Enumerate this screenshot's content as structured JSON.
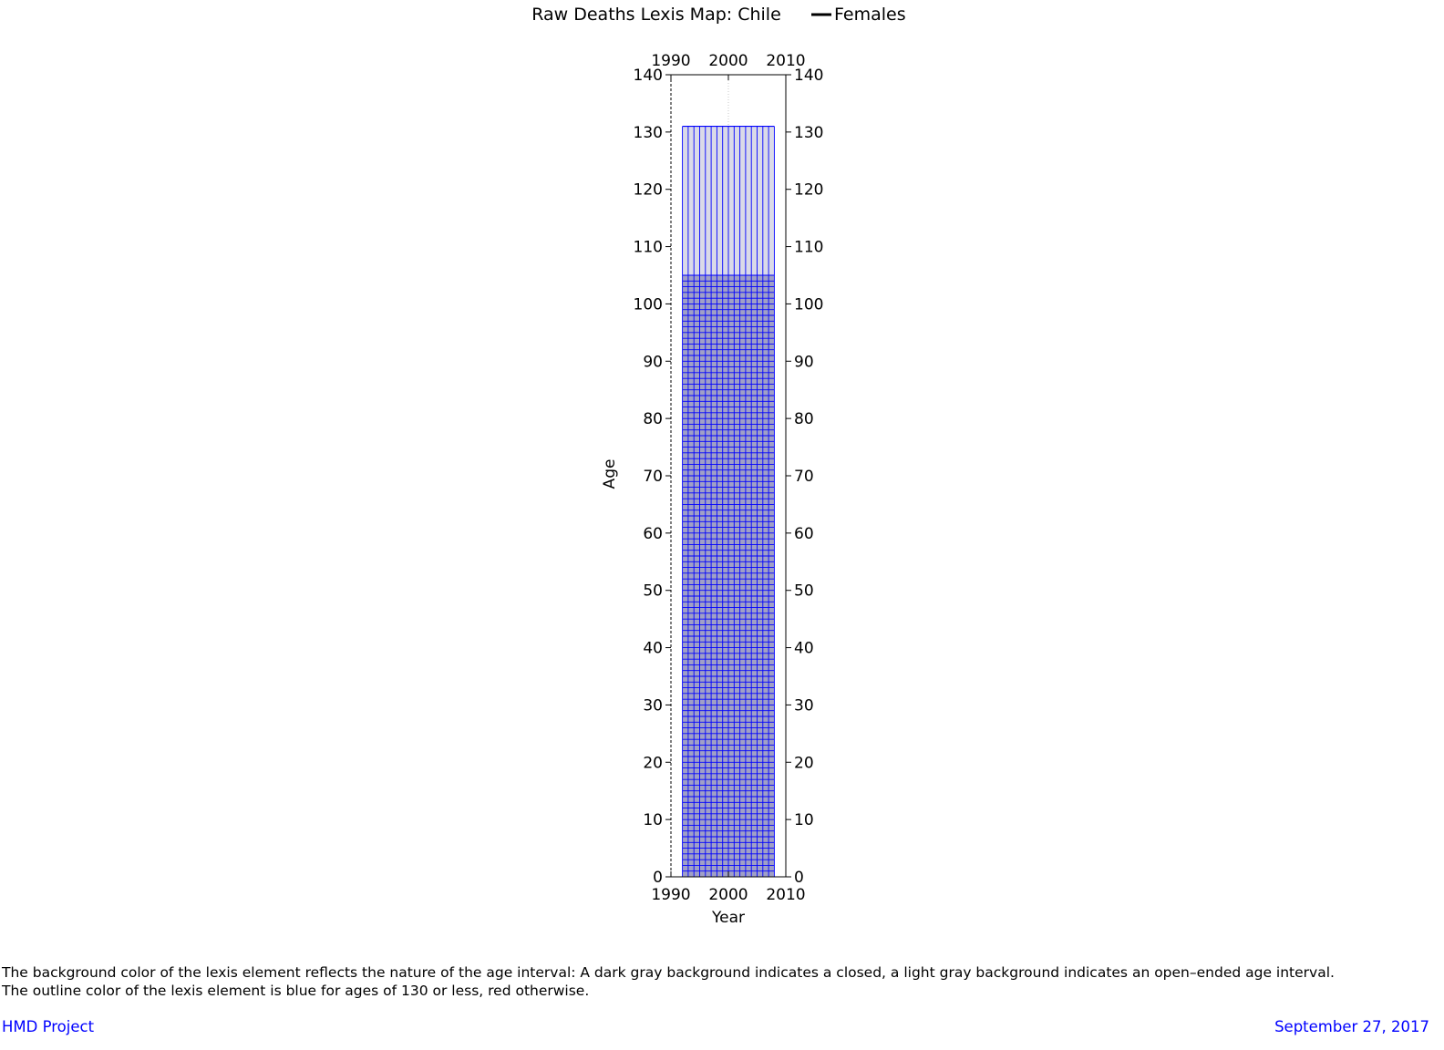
{
  "chart_data": {
    "type": "heatmap",
    "title": "Raw Deaths Lexis Map: Chile",
    "legend": {
      "label": "Females",
      "position": "top, right of title"
    },
    "xlabel": "Year",
    "ylabel": "Age",
    "xlim": [
      1990,
      2010
    ],
    "ylim": [
      0,
      140
    ],
    "x_ticks": [
      1990,
      2000,
      2010
    ],
    "y_ticks": [
      0,
      10,
      20,
      30,
      40,
      50,
      60,
      70,
      80,
      90,
      100,
      110,
      120,
      130,
      140
    ],
    "axes_mirrored": "ticks and labels on all four sides",
    "grid": false,
    "lexis_region": {
      "year_start": 1992,
      "year_end": 2008,
      "year_step": 1,
      "age_start": 0,
      "age_closed_end": 105,
      "age_step": 1,
      "open_interval_start": 105,
      "open_interval_top": 131,
      "closed_fill_color": "#a0a0c6",
      "open_fill_color": "#dadae8",
      "outline_color": "#0000ff"
    }
  },
  "caption": {
    "line1": "The background color of the lexis element reflects the nature of the age interval: A dark gray background indicates a closed, a light gray background indicates an open–ended age interval.",
    "line2": "The outline color of the lexis element is blue for ages of 130 or less, red otherwise."
  },
  "footer": {
    "left": "HMD Project",
    "right": "September 27, 2017",
    "link_color": "#0000ff"
  }
}
